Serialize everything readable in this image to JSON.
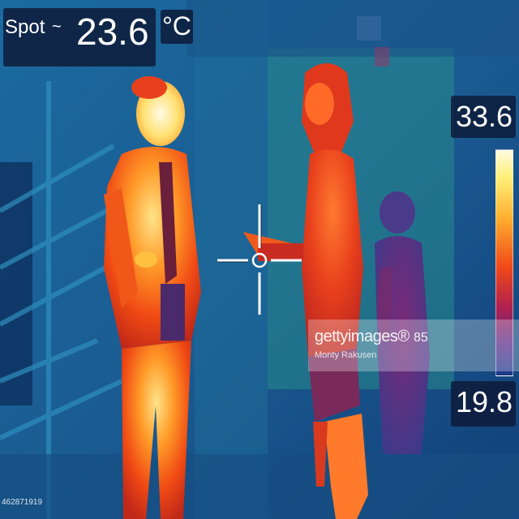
{
  "readout": {
    "mode_label": "Spot",
    "approx_symbol": "~",
    "value": "23.6",
    "unit": "°C"
  },
  "scale": {
    "max": "33.6",
    "min": "19.8"
  },
  "watermark": {
    "logo": "gettyimages®",
    "number": "85",
    "credit": "Monty Rakusen"
  },
  "image_id": "462871919",
  "colors": {
    "background": "#1a5a8c",
    "hot": "#ff5a10",
    "warm": "#ffb030",
    "cool": "#2a8a9a",
    "panel": "#0d1b3a"
  }
}
